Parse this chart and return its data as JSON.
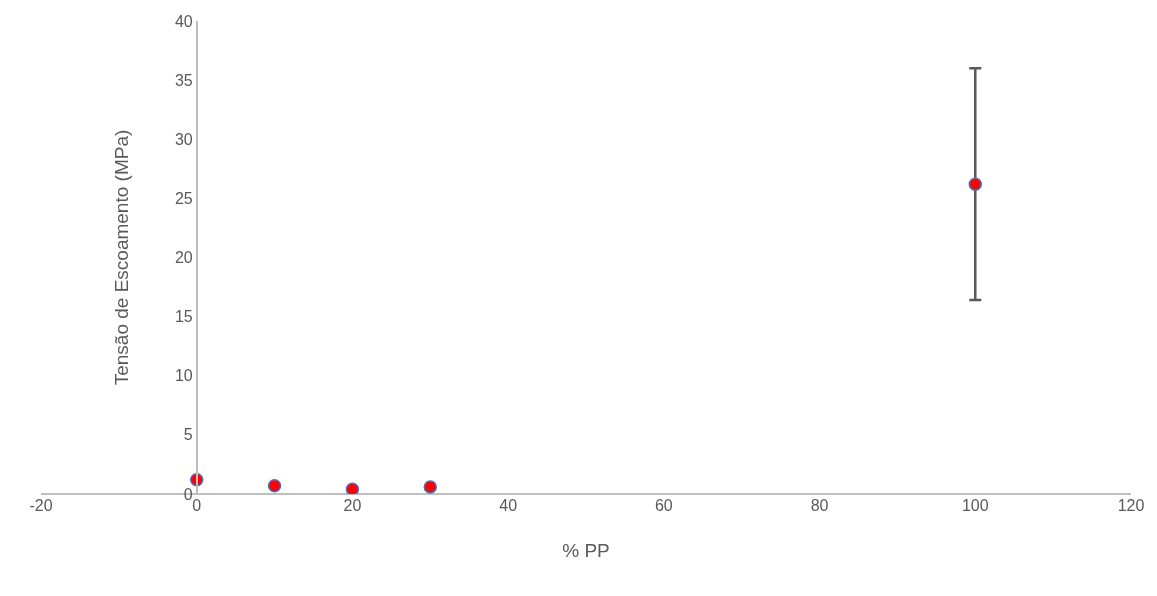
{
  "chart_data": {
    "type": "scatter",
    "xlabel": "% PP",
    "ylabel": "Tensão de Escoamento (MPa)",
    "x": [
      0,
      10,
      20,
      30,
      100
    ],
    "series": [
      {
        "color": "#ff0000",
        "values": [
          1.2,
          0.7,
          0.4,
          0.6,
          26.2
        ],
        "errors": [
          null,
          null,
          null,
          null,
          9.8
        ]
      }
    ],
    "xlim": [
      -20,
      120
    ],
    "xticks": [
      -20,
      0,
      20,
      40,
      60,
      80,
      100,
      120
    ],
    "ylim": [
      0,
      40
    ],
    "yticks": [
      0,
      5,
      10,
      15,
      20,
      25,
      30,
      35,
      40
    ],
    "legend": false,
    "marker": "circle"
  }
}
